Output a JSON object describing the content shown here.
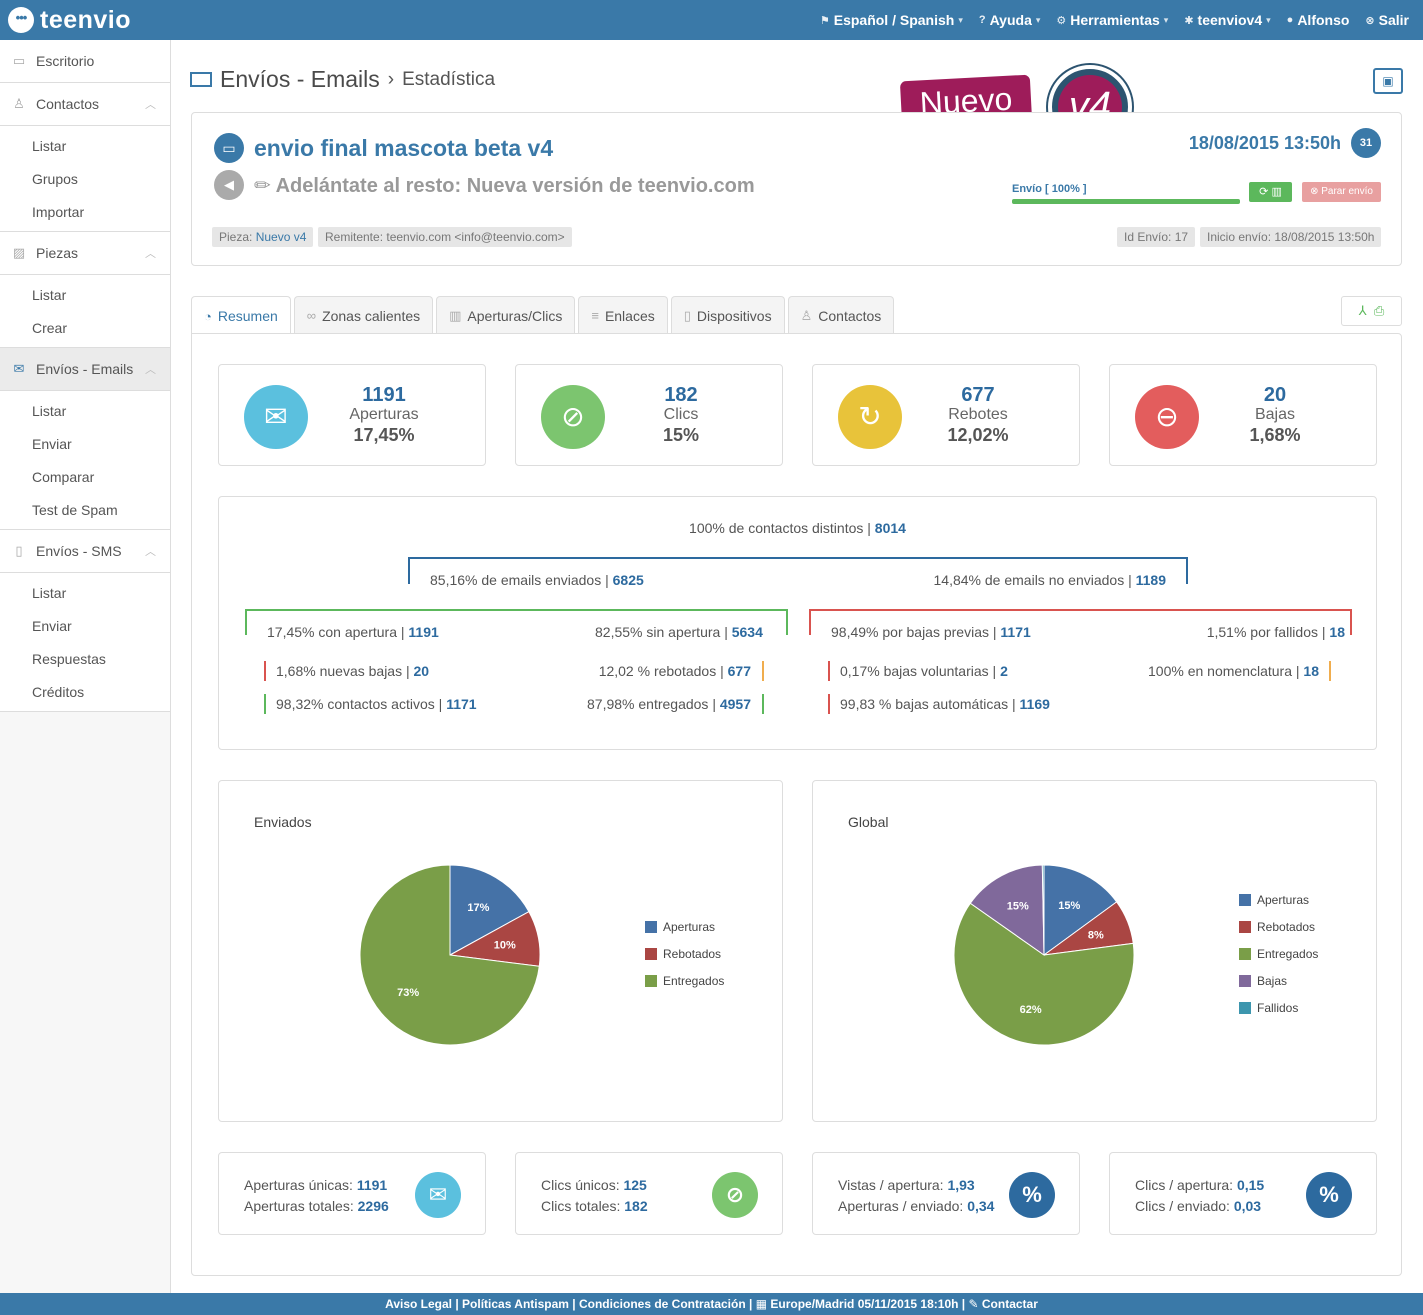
{
  "app": {
    "logo_text": "teenvio",
    "logo_mark": "•••"
  },
  "topnav": [
    {
      "label": "Español / Spanish",
      "icon": "flag-icon",
      "caret": true
    },
    {
      "label": "Ayuda",
      "icon": "help-icon",
      "caret": true
    },
    {
      "label": "Herramientas",
      "icon": "gear-icon",
      "caret": true
    },
    {
      "label": "teenviov4",
      "icon": "asterisk-icon",
      "caret": true
    },
    {
      "label": "Alfonso",
      "icon": "user-icon",
      "caret": false
    },
    {
      "label": "Salir",
      "icon": "logout-icon",
      "caret": false
    }
  ],
  "sidebar": {
    "sections": [
      {
        "label": "Escritorio",
        "icon": "monitor-icon",
        "items": []
      },
      {
        "label": "Contactos",
        "icon": "users-icon",
        "items": [
          "Listar",
          "Grupos",
          "Importar"
        ]
      },
      {
        "label": "Piezas",
        "icon": "image-icon",
        "items": [
          "Listar",
          "Crear"
        ]
      },
      {
        "label": "Envíos - Emails",
        "icon": "envelope-icon",
        "items": [
          "Listar",
          "Enviar",
          "Comparar",
          "Test de Spam"
        ]
      },
      {
        "label": "Envíos - SMS",
        "icon": "phone-icon",
        "items": [
          "Listar",
          "Enviar",
          "Respuestas",
          "Créditos"
        ]
      }
    ]
  },
  "breadcrumb": {
    "title": "Envíos - Emails",
    "sep": "›",
    "current": "Estadística"
  },
  "promo": {
    "badge": "Nuevo",
    "version": "v4"
  },
  "envio": {
    "title": "envio final mascota beta v4",
    "subject": "✏ Adelántate al resto: Nueva versión de teenvio.com",
    "date": "18/08/2015 13:50h",
    "calendar_day": "31",
    "progress_label": "Envío [ 100% ]",
    "progress": 1.0,
    "stop_label": "⊗ Parar envío",
    "pieza_label": "Pieza:",
    "pieza_value": "Nuevo v4",
    "remitente": "Remitente: teenvio.com <info@teenvio.com>",
    "id_envio": "Id Envío: 17",
    "inicio": "Inicio envío: 18/08/2015 13:50h"
  },
  "tabs": [
    "Resumen",
    "Zonas calientes",
    "Aperturas/Clics",
    "Enlaces",
    "Dispositivos",
    "Contactos"
  ],
  "stats": [
    {
      "value": "1191",
      "label": "Aperturas",
      "pct": "17,45%",
      "color": "#5bc0de",
      "icon": "envelope-open-icon"
    },
    {
      "value": "182",
      "label": "Clics",
      "pct": "15%",
      "color": "#7cc56f",
      "icon": "mouse-icon"
    },
    {
      "value": "677",
      "label": "Rebotes",
      "pct": "12,02%",
      "color": "#e8c33a",
      "icon": "refresh-icon"
    },
    {
      "value": "20",
      "label": "Bajas",
      "pct": "1,68%",
      "color": "#e35d5d",
      "icon": "minus-circle-icon"
    }
  ],
  "flow": {
    "total": {
      "text": "100% de contactos distintos |",
      "num": "8014"
    },
    "enviados": {
      "text": "85,16% de emails enviados |",
      "num": "6825"
    },
    "no_enviados": {
      "text": "14,84% de emails no enviados |",
      "num": "1189"
    },
    "con_apertura": {
      "text": "17,45% con apertura |",
      "num": "1191"
    },
    "sin_apertura": {
      "text": "82,55% sin apertura |",
      "num": "5634"
    },
    "bajas_previas": {
      "text": "98,49% por bajas previas |",
      "num": "1171"
    },
    "fallidos": {
      "text": "1,51% por fallidos |",
      "num": "18"
    },
    "nuevas_bajas": {
      "text": "1,68% nuevas bajas |",
      "num": "20"
    },
    "rebotados": {
      "text": "12,02 % rebotados |",
      "num": "677"
    },
    "voluntarias": {
      "text": "0,17% bajas voluntarias |",
      "num": "2"
    },
    "nomenclatura": {
      "text": "100% en nomenclatura |",
      "num": "18"
    },
    "activos": {
      "text": "98,32% contactos activos |",
      "num": "1171"
    },
    "entregados": {
      "text": "87,98% entregados |",
      "num": "4957"
    },
    "automaticas": {
      "text": "99,83 % bajas automáticas |",
      "num": "1169"
    }
  },
  "chart_data": [
    {
      "type": "pie",
      "title": "Enviados",
      "categories": [
        "Aperturas",
        "Rebotados",
        "Entregados"
      ],
      "values": [
        17,
        10,
        73
      ],
      "labels": [
        "17%",
        "10%",
        "73%"
      ],
      "colors": [
        "#4572a7",
        "#aa4643",
        "#7a9e48"
      ],
      "legend": "right"
    },
    {
      "type": "pie",
      "title": "Global",
      "categories": [
        "Aperturas",
        "Rebotados",
        "Entregados",
        "Bajas",
        "Fallidos"
      ],
      "values": [
        15,
        8,
        62,
        15,
        0.3
      ],
      "labels": [
        "15%",
        "8%",
        "62%",
        "15%",
        ""
      ],
      "colors": [
        "#4572a7",
        "#aa4643",
        "#7a9e48",
        "#80699b",
        "#3d96ae"
      ],
      "legend": "right"
    }
  ],
  "bottom": [
    {
      "l1": "Aperturas únicas:",
      "v1": "1191",
      "l2": "Aperturas totales:",
      "v2": "2296",
      "color": "#5bc0de",
      "icon": "envelope-open-icon",
      "glyph": "✉"
    },
    {
      "l1": "Clics únicos:",
      "v1": "125",
      "l2": "Clics totales:",
      "v2": "182",
      "color": "#7cc56f",
      "icon": "mouse-icon",
      "glyph": "⊘"
    },
    {
      "l1": "Vistas / apertura:",
      "v1": "1,93",
      "l2": "Aperturas / enviado:",
      "v2": "0,34",
      "color": "#2d6a9f",
      "icon": "percent-icon",
      "glyph": "%"
    },
    {
      "l1": "Clics / apertura:",
      "v1": "0,15",
      "l2": "Clics / enviado:",
      "v2": "0,03",
      "color": "#2d6a9f",
      "icon": "percent-icon",
      "glyph": "%"
    }
  ],
  "footer": "Aviso Legal | Políticas Antispam | Condiciones de Contratación | ▦ Europe/Madrid 05/11/2015 18:10h | ✎ Contactar"
}
